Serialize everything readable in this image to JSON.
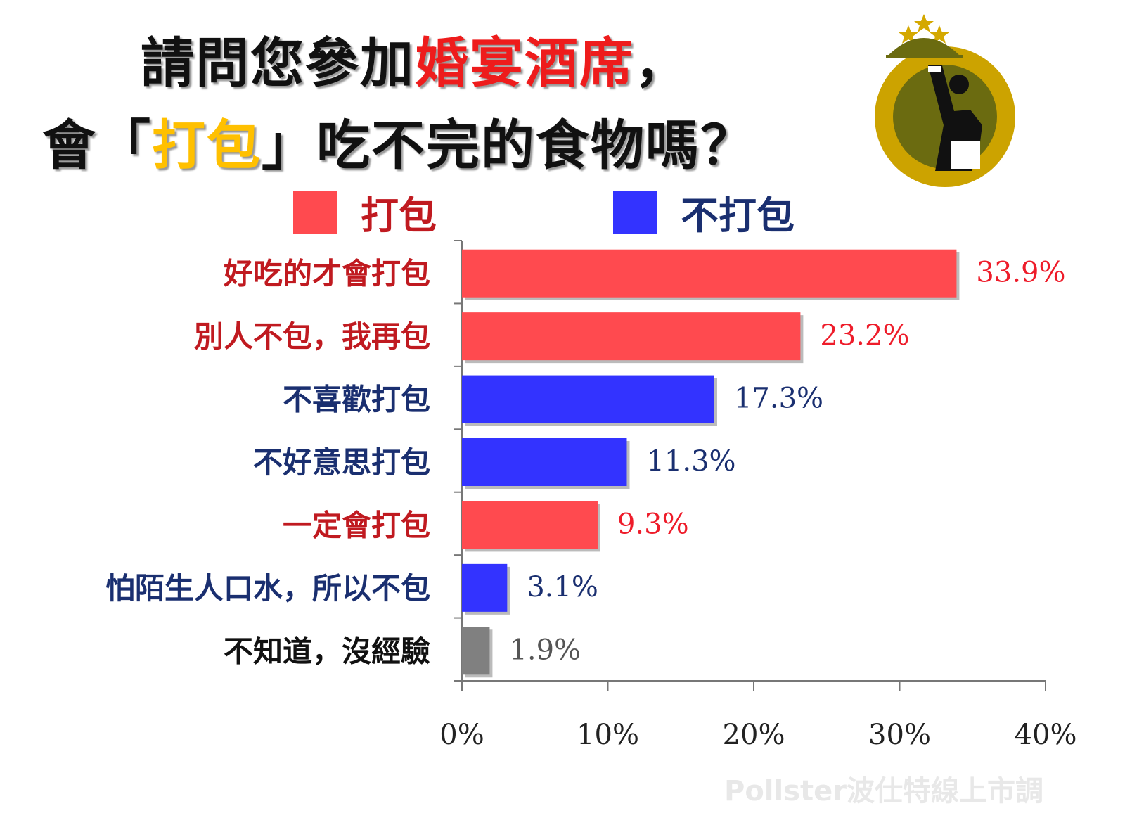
{
  "chart_data": {
    "type": "bar",
    "orientation": "horizontal",
    "title_segments": [
      {
        "line": 1,
        "text": "請問您參加",
        "color": "#111111"
      },
      {
        "line": 1,
        "text": "婚宴酒席",
        "color": "#ee1c1c"
      },
      {
        "line": 1,
        "text": "，",
        "color": "#111111"
      },
      {
        "line": 2,
        "text": "會「",
        "color": "#111111"
      },
      {
        "line": 2,
        "text": "打包",
        "color": "#ffc000"
      },
      {
        "line": 2,
        "text": "」吃不完的食物嗎？",
        "color": "#111111"
      }
    ],
    "legend": [
      {
        "name": "打包",
        "color": "#ff4a4f",
        "text_color": "#c01a20"
      },
      {
        "name": "不打包",
        "color": "#3333ff",
        "text_color": "#1a2f70"
      }
    ],
    "legend_placement": "top",
    "categories": [
      "好吃的才會打包",
      "別人不包，我再包",
      "不喜歡打包",
      "不好意思打包",
      "一定會打包",
      "怕陌生人口水，所以不包",
      "不知道，沒經驗"
    ],
    "values": [
      33.9,
      23.2,
      17.3,
      11.3,
      9.3,
      3.1,
      1.9
    ],
    "value_labels": [
      "33.9%",
      "23.2%",
      "17.3%",
      "11.3%",
      "9.3%",
      "3.1%",
      "1.9%"
    ],
    "group": [
      "打包",
      "打包",
      "不打包",
      "不打包",
      "打包",
      "不打包",
      "其他"
    ],
    "bar_colors": [
      "#ff4a4f",
      "#ff4a4f",
      "#3333ff",
      "#3333ff",
      "#ff4a4f",
      "#3333ff",
      "#808080"
    ],
    "label_colors": [
      "#c01a20",
      "#c01a20",
      "#1a2f70",
      "#1a2f70",
      "#c01a20",
      "#1a2f70",
      "#111111"
    ],
    "xlim": [
      0,
      40
    ],
    "xticks": [
      "0%",
      "10%",
      "20%",
      "30%",
      "40%"
    ],
    "grid": false
  },
  "watermark": "Pollster波仕特線上市調",
  "logo": "waiter-with-cloche-logo"
}
